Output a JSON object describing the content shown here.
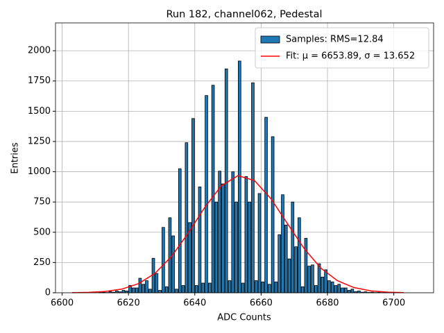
{
  "chart_data": {
    "type": "histogram",
    "title": "Run 182, channel062, Pedestal",
    "x_label": "ADC Counts",
    "y_label": "Entries",
    "xlim": [
      6598,
      6712
    ],
    "ylim": [
      0,
      2230
    ],
    "xticks": [
      6600,
      6620,
      6640,
      6660,
      6680,
      6700
    ],
    "yticks": [
      0,
      250,
      500,
      750,
      1000,
      1250,
      1500,
      1750,
      2000
    ],
    "grid": true,
    "legend": "upper right",
    "series": [
      {
        "name": "Samples: RMS=12.84",
        "type": "histogram",
        "color": "#1f77b4",
        "bins": [
          6611,
          6612,
          6613,
          6614,
          6615,
          6616,
          6617,
          6618,
          6619,
          6620,
          6621,
          6622,
          6623,
          6624,
          6625,
          6626,
          6627,
          6628,
          6629,
          6630,
          6631,
          6632,
          6633,
          6634,
          6635,
          6636,
          6637,
          6638,
          6639,
          6640,
          6641,
          6642,
          6643,
          6644,
          6645,
          6646,
          6647,
          6648,
          6649,
          6650,
          6651,
          6652,
          6653,
          6654,
          6655,
          6656,
          6657,
          6658,
          6659,
          6660,
          6661,
          6662,
          6663,
          6664,
          6665,
          6666,
          6667,
          6668,
          6669,
          6670,
          6671,
          6672,
          6673,
          6674,
          6675,
          6676,
          6677,
          6678,
          6679,
          6680,
          6681,
          6682,
          6683,
          6684,
          6685,
          6686,
          6687,
          6688,
          6689,
          6690,
          6691,
          6692,
          6693,
          6694,
          6695,
          6696,
          6697,
          6698,
          6699,
          6700,
          6701
        ],
        "values": [
          3,
          5,
          2,
          10,
          5,
          15,
          8,
          20,
          15,
          60,
          40,
          40,
          120,
          70,
          100,
          30,
          285,
          160,
          20,
          540,
          50,
          620,
          470,
          30,
          1025,
          60,
          1240,
          580,
          1440,
          60,
          875,
          80,
          1630,
          80,
          1715,
          750,
          1005,
          900,
          1850,
          100,
          1000,
          750,
          1915,
          80,
          960,
          750,
          1735,
          100,
          820,
          90,
          1450,
          70,
          1290,
          90,
          480,
          810,
          560,
          280,
          750,
          380,
          620,
          50,
          450,
          220,
          230,
          60,
          240,
          130,
          190,
          100,
          90,
          60,
          70,
          40,
          40,
          20,
          30,
          10,
          15,
          5,
          8,
          3,
          5,
          2,
          3,
          1,
          2,
          1,
          1,
          1
        ]
      },
      {
        "name": "Fit: μ = 6653.89, σ = 13.652",
        "type": "line",
        "color": "#ff0000",
        "x": [
          6603,
          6608,
          6613,
          6618,
          6623,
          6628,
          6633,
          6638,
          6643,
          6648,
          6653,
          6658,
          6663,
          6668,
          6673,
          6678,
          6683,
          6688,
          6693,
          6698,
          6703
        ],
        "values": [
          0.9,
          3.4,
          10.9,
          30.6,
          75,
          160.6,
          300.8,
          492.7,
          705.7,
          883.8,
          967.9,
          927,
          776.2,
          568.5,
          364.2,
          204,
          99.9,
          42.8,
          16,
          5.2,
          1.5
        ]
      }
    ]
  }
}
